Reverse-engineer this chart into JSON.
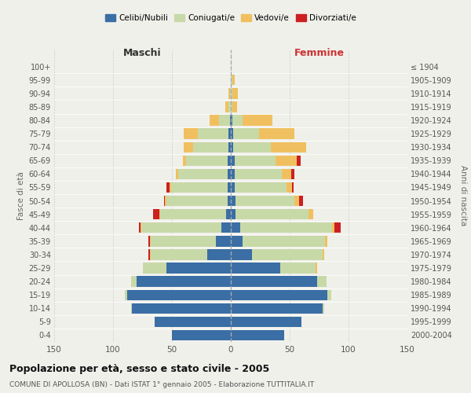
{
  "age_groups": [
    "0-4",
    "5-9",
    "10-14",
    "15-19",
    "20-24",
    "25-29",
    "30-34",
    "35-39",
    "40-44",
    "45-49",
    "50-54",
    "55-59",
    "60-64",
    "65-69",
    "70-74",
    "75-79",
    "80-84",
    "85-89",
    "90-94",
    "95-99",
    "100+"
  ],
  "birth_years": [
    "2000-2004",
    "1995-1999",
    "1990-1994",
    "1985-1989",
    "1980-1984",
    "1975-1979",
    "1970-1974",
    "1965-1969",
    "1960-1964",
    "1955-1959",
    "1950-1954",
    "1945-1949",
    "1940-1944",
    "1935-1939",
    "1930-1934",
    "1925-1929",
    "1920-1924",
    "1915-1919",
    "1910-1914",
    "1905-1909",
    "≤ 1904"
  ],
  "male": {
    "celibi": [
      50,
      65,
      84,
      88,
      80,
      55,
      20,
      13,
      8,
      4,
      3,
      3,
      3,
      3,
      2,
      2,
      1,
      0,
      0,
      0,
      0
    ],
    "coniugati": [
      0,
      0,
      1,
      2,
      5,
      20,
      48,
      55,
      68,
      56,
      52,
      48,
      42,
      35,
      30,
      26,
      9,
      2,
      1,
      0,
      0
    ],
    "vedovi": [
      0,
      0,
      0,
      0,
      0,
      0,
      1,
      1,
      1,
      1,
      1,
      1,
      2,
      3,
      8,
      12,
      8,
      3,
      1,
      0,
      0
    ],
    "divorziati": [
      0,
      0,
      0,
      0,
      0,
      0,
      1,
      1,
      1,
      5,
      1,
      3,
      0,
      0,
      0,
      0,
      0,
      0,
      0,
      0,
      0
    ]
  },
  "female": {
    "nubili": [
      45,
      60,
      78,
      82,
      73,
      42,
      18,
      10,
      8,
      4,
      4,
      3,
      3,
      3,
      2,
      2,
      1,
      0,
      0,
      0,
      0
    ],
    "coniugate": [
      0,
      0,
      1,
      3,
      8,
      30,
      60,
      70,
      78,
      62,
      50,
      44,
      40,
      35,
      32,
      22,
      9,
      1,
      1,
      1,
      0
    ],
    "vedove": [
      0,
      0,
      0,
      0,
      0,
      1,
      1,
      2,
      2,
      4,
      4,
      5,
      8,
      18,
      30,
      30,
      25,
      4,
      5,
      2,
      0
    ],
    "divorziate": [
      0,
      0,
      0,
      0,
      0,
      0,
      0,
      0,
      5,
      0,
      3,
      1,
      3,
      3,
      0,
      0,
      0,
      0,
      0,
      0,
      0
    ]
  },
  "colors": {
    "celibi": "#3a6ea5",
    "coniugati": "#c8d9a8",
    "vedovi": "#f0c060",
    "divorziati": "#cc2020"
  },
  "xlim": 150,
  "title": "Popolazione per età, sesso e stato civile - 2005",
  "subtitle": "COMUNE DI APOLLOSA (BN) - Dati ISTAT 1° gennaio 2005 - Elaborazione TUTTITALIA.IT",
  "ylabel_left": "Fasce di età",
  "ylabel_right": "Anni di nascita",
  "xlabel_left": "Maschi",
  "xlabel_right": "Femmine",
  "legend_labels": [
    "Celibi/Nubili",
    "Coniugati/e",
    "Vedovi/e",
    "Divorziati/e"
  ],
  "background_color": "#f0f0eb"
}
